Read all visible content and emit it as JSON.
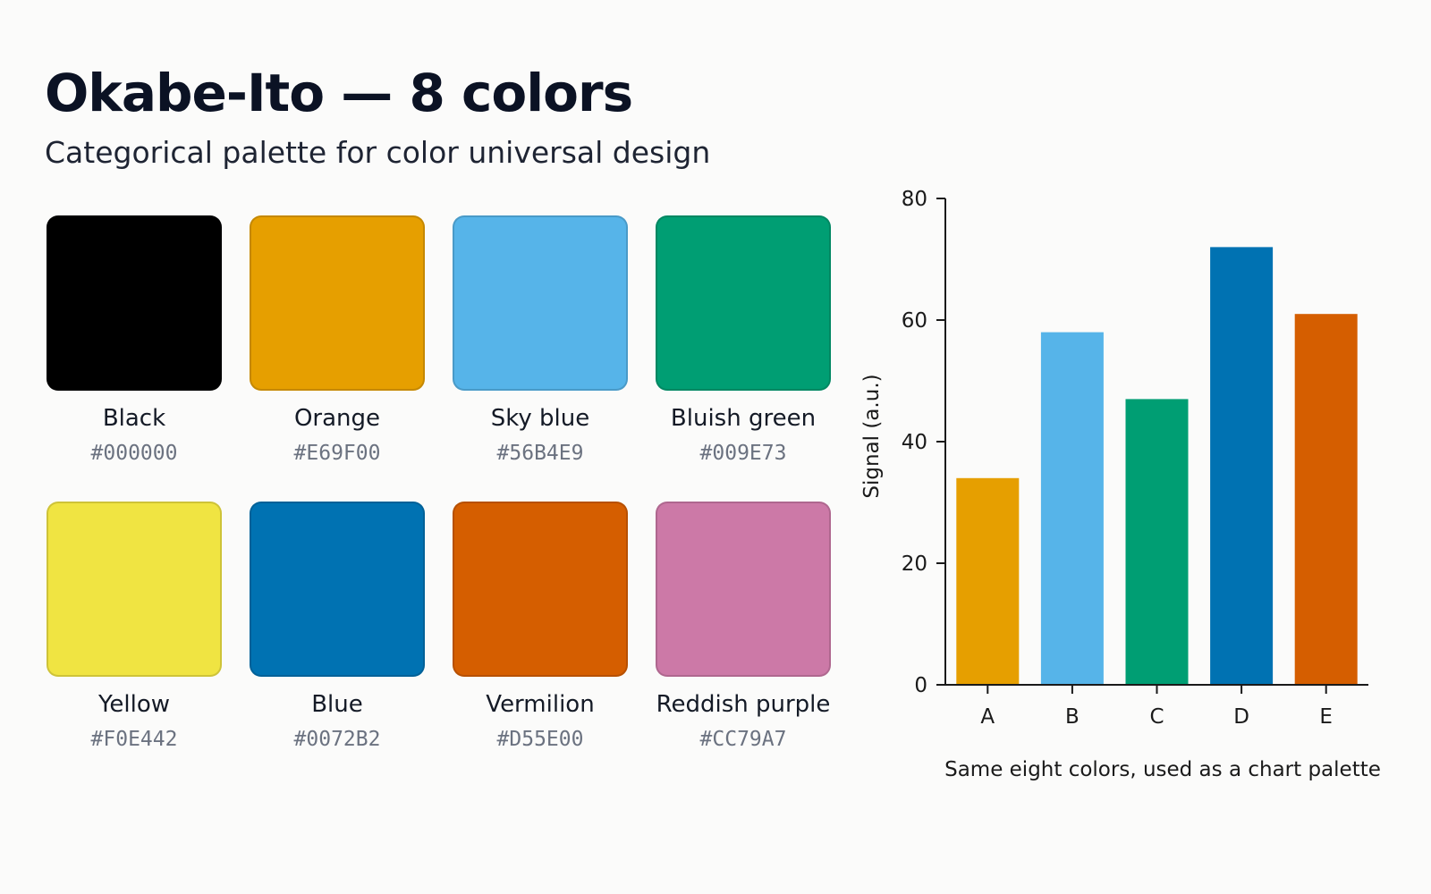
{
  "title": "Okabe-Ito — 8 colors",
  "subtitle": "Categorical palette for color universal design",
  "swatches": [
    {
      "name": "Black",
      "hex": "#000000",
      "color": "#000000"
    },
    {
      "name": "Orange",
      "hex": "#E69F00",
      "color": "#E69F00"
    },
    {
      "name": "Sky blue",
      "hex": "#56B4E9",
      "color": "#56B4E9"
    },
    {
      "name": "Bluish green",
      "hex": "#009E73",
      "color": "#009E73"
    },
    {
      "name": "Yellow",
      "hex": "#F0E442",
      "color": "#F0E442"
    },
    {
      "name": "Blue",
      "hex": "#0072B2",
      "color": "#0072B2"
    },
    {
      "name": "Vermilion",
      "hex": "#D55E00",
      "color": "#D55E00"
    },
    {
      "name": "Reddish purple",
      "hex": "#CC79A7",
      "color": "#CC79A7"
    }
  ],
  "chart_caption": "Same eight colors, used as a chart palette",
  "chart_data": {
    "type": "bar",
    "categories": [
      "A",
      "B",
      "C",
      "D",
      "E"
    ],
    "values": [
      34,
      58,
      47,
      72,
      61
    ],
    "colors": [
      "#E69F00",
      "#56B4E9",
      "#009E73",
      "#0072B2",
      "#D55E00"
    ],
    "title": "",
    "xlabel": "",
    "ylabel": "Signal (a.u.)",
    "ylim": [
      0,
      80
    ],
    "yticks": [
      0,
      20,
      40,
      60,
      80
    ],
    "grid": false,
    "legend": "none"
  }
}
